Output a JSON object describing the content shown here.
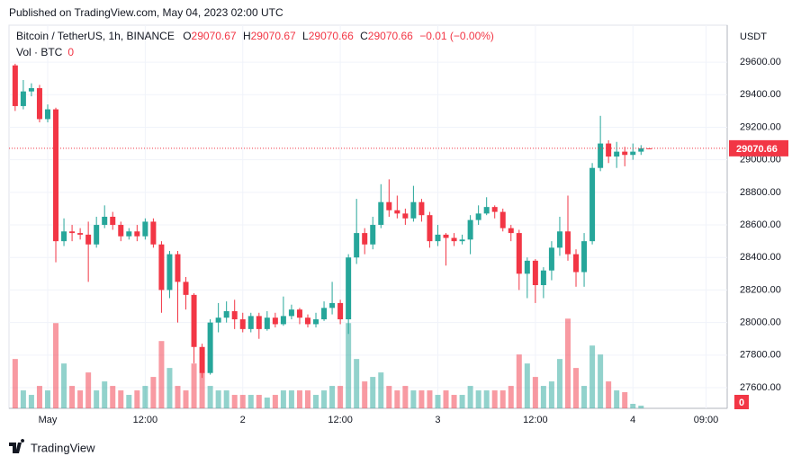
{
  "header": {
    "published": "Published on TradingView.com, May 04, 2023 02:00 UTC"
  },
  "chart_data": {
    "type": "candlestick",
    "title": "Bitcoin / TetherUS, 1h, BINANCE",
    "legend_labels": [
      "O",
      "H",
      "L",
      "C"
    ],
    "change": "−0.01 (−0.00%)",
    "volume_label": "Vol · BTC",
    "currency": "USDT",
    "open": [
      29580,
      29330,
      29420,
      29440,
      29250,
      29310,
      28500,
      28560,
      28550,
      28540,
      28480,
      28600,
      28650,
      28600,
      28530,
      28560,
      28530,
      28620,
      28480,
      28200,
      28420,
      28250,
      28170,
      27850,
      27690,
      28000,
      28030,
      28070,
      28020,
      27960,
      28040,
      27960,
      28030,
      27990,
      28040,
      28080,
      28030,
      27990,
      28020,
      28090,
      28120,
      28020,
      28400,
      28550,
      28480,
      28600,
      28740,
      28690,
      28670,
      28640,
      28740,
      28660,
      28500,
      28540,
      28520,
      28500,
      28510,
      28630,
      28670,
      28710,
      28680,
      28580,
      28550,
      28300,
      28380,
      28230,
      28320,
      28460,
      28560,
      28420,
      28310,
      28500,
      28950,
      29100,
      29020,
      29050,
      29030,
      29050,
      29070.67
    ],
    "high": [
      29590,
      29490,
      29470,
      29460,
      29340,
      29320,
      28640,
      28600,
      28580,
      28620,
      28650,
      28720,
      28680,
      28620,
      28580,
      28600,
      28640,
      28640,
      28500,
      28440,
      28440,
      28280,
      28180,
      27870,
      28020,
      28120,
      28130,
      28140,
      28060,
      28060,
      28060,
      28070,
      28060,
      28160,
      28110,
      28090,
      28050,
      28060,
      28130,
      28250,
      28140,
      28420,
      28760,
      28580,
      28650,
      28850,
      28880,
      28780,
      28700,
      28840,
      28760,
      28680,
      28600,
      28550,
      28550,
      28540,
      28660,
      28720,
      28770,
      28720,
      28700,
      28600,
      28570,
      28400,
      28390,
      28340,
      28500,
      28650,
      28780,
      28450,
      28550,
      28980,
      29270,
      29120,
      29110,
      29080,
      29100,
      29090,
      29070.67
    ],
    "low": [
      29300,
      29310,
      29390,
      29230,
      29230,
      28370,
      28470,
      28500,
      28510,
      28250,
      28460,
      28580,
      28570,
      28500,
      28510,
      28500,
      28510,
      28460,
      28060,
      28150,
      28000,
      28080,
      27750,
      27660,
      27680,
      27940,
      28000,
      27960,
      27940,
      27940,
      27900,
      27950,
      27970,
      27980,
      28020,
      27990,
      27970,
      27970,
      28010,
      28050,
      27990,
      27930,
      28360,
      28420,
      28450,
      28580,
      28650,
      28640,
      28600,
      28620,
      28620,
      28460,
      28470,
      28350,
      28470,
      28480,
      28420,
      28600,
      28660,
      28640,
      28560,
      28500,
      28200,
      28150,
      28120,
      28150,
      28260,
      28410,
      28380,
      28220,
      28220,
      28480,
      28930,
      28980,
      28950,
      28960,
      29000,
      29030,
      29070.66
    ],
    "close": [
      29330,
      29420,
      29440,
      29250,
      29310,
      28500,
      28560,
      28550,
      28540,
      28480,
      28600,
      28650,
      28600,
      28530,
      28560,
      28530,
      28620,
      28480,
      28200,
      28420,
      28250,
      28170,
      27850,
      27690,
      28000,
      28030,
      28070,
      28020,
      27960,
      28040,
      27960,
      28030,
      27990,
      28040,
      28080,
      28030,
      27990,
      28020,
      28090,
      28120,
      28020,
      28400,
      28550,
      28480,
      28600,
      28740,
      28690,
      28670,
      28640,
      28740,
      28660,
      28500,
      28540,
      28520,
      28500,
      28510,
      28630,
      28670,
      28710,
      28680,
      28580,
      28550,
      28300,
      28380,
      28230,
      28320,
      28460,
      28560,
      28420,
      28310,
      28500,
      28950,
      29100,
      29020,
      29050,
      29030,
      29050,
      29070.67,
      29070.66
    ],
    "volume": [
      1650,
      600,
      450,
      750,
      600,
      2850,
      1500,
      750,
      600,
      1200,
      600,
      900,
      750,
      600,
      450,
      600,
      750,
      1050,
      2250,
      1350,
      750,
      600,
      1500,
      1200,
      750,
      600,
      600,
      450,
      450,
      450,
      450,
      360,
      450,
      600,
      600,
      600,
      600,
      450,
      600,
      750,
      750,
      2850,
      1650,
      900,
      1050,
      1200,
      750,
      600,
      750,
      600,
      600,
      600,
      450,
      600,
      450,
      450,
      750,
      600,
      600,
      600,
      600,
      750,
      1800,
      1500,
      1050,
      750,
      900,
      1650,
      3000,
      1350,
      750,
      2100,
      1800,
      900,
      600,
      540,
      150,
      90,
      0
    ],
    "ylim": [
      27473,
      29827
    ],
    "yticks": [
      {
        "value": 27600,
        "label": "27600.00"
      },
      {
        "value": 27800,
        "label": "27800.00"
      },
      {
        "value": 28000,
        "label": "28000.00"
      },
      {
        "value": 28200,
        "label": "28200.00"
      },
      {
        "value": 28400,
        "label": "28400.00"
      },
      {
        "value": 28600,
        "label": "28600.00"
      },
      {
        "value": 28800,
        "label": "28800.00"
      },
      {
        "value": 29000,
        "label": "29000.00"
      },
      {
        "value": 29200,
        "label": "29200.00"
      },
      {
        "value": 29400,
        "label": "29400.00"
      },
      {
        "value": 29600,
        "label": "29600.00"
      }
    ],
    "xlim": [
      -0.76,
      87.6
    ],
    "xticks": [
      {
        "value": 4,
        "label": "May"
      },
      {
        "value": 16,
        "label": "12:00"
      },
      {
        "value": 28,
        "label": "2"
      },
      {
        "value": 40,
        "label": "12:00"
      },
      {
        "value": 52,
        "label": "3"
      },
      {
        "value": 64,
        "label": "12:00"
      },
      {
        "value": 76,
        "label": "4"
      },
      {
        "value": 85,
        "label": "09:00"
      }
    ],
    "volume_lim": [
      0,
      4000
    ],
    "up_color": "#26a69a",
    "down_color": "#f23645",
    "grid": true
  },
  "footer": {
    "brand": "TradingView"
  }
}
